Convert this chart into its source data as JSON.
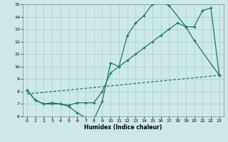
{
  "xlabel": "Humidex (Indice chaleur)",
  "bg_color": "#cde8e8",
  "grid_color": "#aacccc",
  "line_color": "#1a7a6a",
  "xlim": [
    -0.5,
    23.5
  ],
  "ylim": [
    6,
    15
  ],
  "xticks": [
    0,
    1,
    2,
    3,
    4,
    5,
    6,
    7,
    8,
    9,
    10,
    11,
    12,
    13,
    14,
    15,
    16,
    17,
    18,
    19,
    20,
    21,
    22,
    23
  ],
  "yticks": [
    6,
    7,
    8,
    9,
    10,
    11,
    12,
    13,
    14,
    15
  ],
  "line1_x": [
    0,
    1,
    2,
    3,
    4,
    5,
    6,
    7,
    8,
    9,
    10,
    11,
    12,
    13,
    14,
    15,
    16,
    17,
    19,
    20,
    23
  ],
  "line1_y": [
    8.1,
    7.3,
    7.0,
    7.0,
    7.0,
    6.8,
    6.3,
    5.9,
    5.75,
    7.2,
    10.3,
    10.0,
    12.5,
    13.5,
    14.1,
    15.0,
    15.2,
    14.9,
    13.2,
    12.1,
    9.3
  ],
  "line2_x": [
    0,
    1,
    2,
    3,
    4,
    5,
    6,
    7,
    8,
    9,
    10,
    11,
    12,
    13,
    14,
    15,
    16,
    17,
    18,
    19,
    20,
    21,
    22,
    23
  ],
  "line2_y": [
    8.1,
    7.3,
    7.0,
    7.1,
    7.0,
    6.9,
    7.1,
    7.1,
    7.1,
    8.0,
    9.5,
    10.0,
    10.5,
    11.0,
    11.5,
    12.0,
    12.5,
    13.0,
    13.5,
    13.2,
    13.2,
    14.5,
    14.7,
    9.3
  ],
  "line3_x": [
    0,
    23
  ],
  "line3_y": [
    7.8,
    9.3
  ]
}
